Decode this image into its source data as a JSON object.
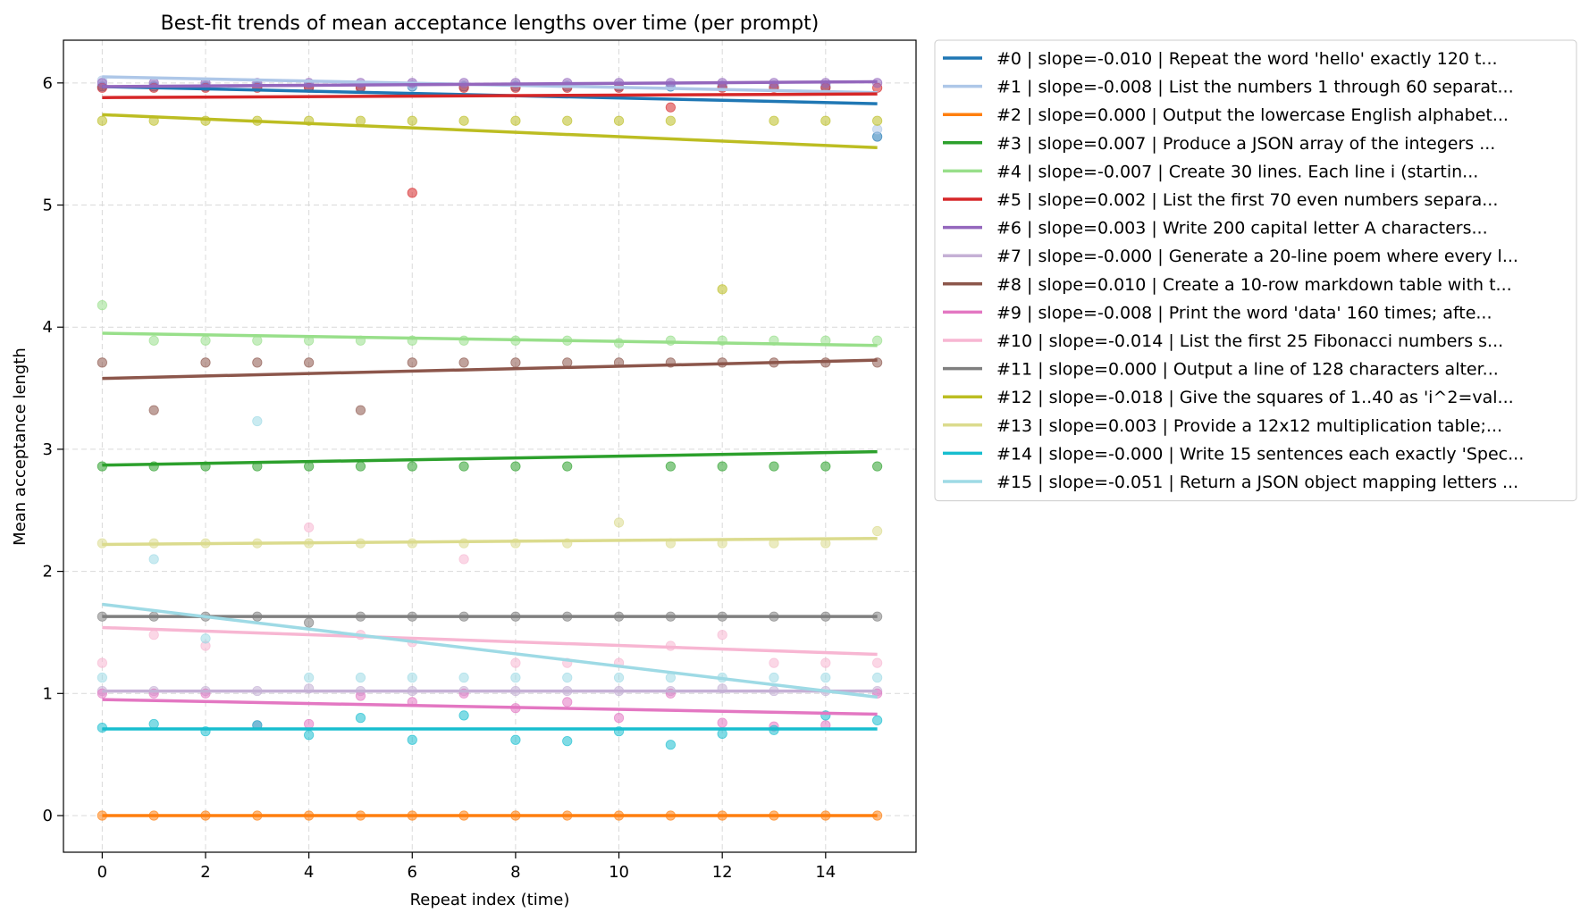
{
  "chart_data": {
    "type": "scatter",
    "title": "Best-fit trends of mean acceptance lengths over time (per prompt)",
    "xlabel": "Repeat index (time)",
    "ylabel": "Mean acceptance length",
    "xlim": [
      -0.75,
      15.75
    ],
    "ylim": [
      -0.3,
      6.35
    ],
    "xticks": [
      0,
      2,
      4,
      6,
      8,
      10,
      12,
      14
    ],
    "yticks": [
      0,
      1,
      2,
      3,
      4,
      5,
      6
    ],
    "grid": true,
    "legend_position": "outside-top-right",
    "x": [
      0,
      1,
      2,
      3,
      4,
      5,
      6,
      7,
      8,
      9,
      10,
      11,
      12,
      13,
      14,
      15
    ],
    "series": [
      {
        "name": "#0 | slope=-0.010 | Repeat the word 'hello' exactly 120 t...",
        "color": "#1f77b4",
        "fit": [
          5.97,
          5.83
        ],
        "values": [
          5.97,
          5.97,
          5.97,
          5.97,
          5.97,
          5.97,
          5.97,
          5.97,
          5.97,
          5.97,
          5.97,
          5.97,
          5.97,
          5.97,
          5.97,
          5.56
        ]
      },
      {
        "name": "#1 | slope=-0.008 | List the numbers 1 through 60 separat...",
        "color": "#aec7e8",
        "fit": [
          6.05,
          5.92
        ],
        "values": [
          6.02,
          5.98,
          5.98,
          5.98,
          5.98,
          5.98,
          5.98,
          5.98,
          5.98,
          5.98,
          5.98,
          5.98,
          5.98,
          5.98,
          5.98,
          5.62
        ]
      },
      {
        "name": "#2 | slope=0.000 | Output the lowercase English alphabet...",
        "color": "#ff7f0e",
        "fit": [
          0.0,
          0.0
        ],
        "values": [
          0,
          0,
          0,
          0,
          0,
          0,
          0,
          0,
          0,
          0,
          0,
          0,
          0,
          0,
          0,
          0
        ]
      },
      {
        "name": "#3 | slope=0.007 | Produce a JSON array of the integers ...",
        "color": "#2ca02c",
        "fit": [
          2.87,
          2.98
        ],
        "values": [
          2.86,
          2.86,
          2.86,
          2.86,
          2.86,
          2.86,
          2.86,
          2.86,
          2.86,
          2.86,
          null,
          2.86,
          2.86,
          2.86,
          2.86,
          2.86
        ]
      },
      {
        "name": "#4 | slope=-0.007 | Create 30 lines. Each line i (startin...",
        "color": "#98df8a",
        "fit": [
          3.95,
          3.85
        ],
        "values": [
          4.18,
          3.89,
          3.89,
          3.89,
          3.89,
          3.89,
          3.89,
          3.89,
          3.89,
          3.89,
          3.87,
          3.89,
          3.89,
          3.89,
          3.89,
          3.89
        ]
      },
      {
        "name": "#5 | slope=0.002 | List the first 70 even numbers separa...",
        "color": "#d62728",
        "fit": [
          5.88,
          5.91
        ],
        "values": [
          5.96,
          5.96,
          5.96,
          5.96,
          5.96,
          5.96,
          5.1,
          5.96,
          5.96,
          5.96,
          5.96,
          5.8,
          5.96,
          5.96,
          5.96,
          5.96
        ]
      },
      {
        "name": "#6 | slope=0.003 | Write 200 capital letter A characters...",
        "color": "#9467bd",
        "fit": [
          5.97,
          6.01
        ],
        "values": [
          6.0,
          6.0,
          6.0,
          6.0,
          6.0,
          6.0,
          6.0,
          6.0,
          6.0,
          6.0,
          6.0,
          6.0,
          6.0,
          6.0,
          6.0,
          6.0
        ]
      },
      {
        "name": "#7 | slope=-0.000 | Generate a 20-line poem where every l...",
        "color": "#c5b0d5",
        "fit": [
          1.02,
          1.02
        ],
        "values": [
          1.02,
          1.02,
          1.02,
          1.02,
          1.04,
          1.02,
          1.02,
          1.02,
          1.02,
          1.02,
          1.02,
          1.02,
          1.04,
          1.02,
          1.02,
          1.02
        ]
      },
      {
        "name": "#8 | slope=0.010 | Create a 10-row markdown table with t...",
        "color": "#8c564b",
        "fit": [
          3.58,
          3.73
        ],
        "values": [
          3.71,
          3.32,
          3.71,
          3.71,
          3.71,
          3.32,
          3.71,
          3.71,
          3.71,
          3.71,
          3.71,
          3.71,
          3.71,
          3.71,
          3.71,
          3.71
        ]
      },
      {
        "name": "#9 | slope=-0.008 | Print the word 'data' 160 times; afte...",
        "color": "#e377c2",
        "fit": [
          0.95,
          0.83
        ],
        "values": [
          1.0,
          1.0,
          1.0,
          0.74,
          0.75,
          0.98,
          0.93,
          1.0,
          0.88,
          0.93,
          0.8,
          1.0,
          0.76,
          0.73,
          0.74,
          1.0
        ]
      },
      {
        "name": "#10 | slope=-0.014 | List the first 25 Fibonacci numbers s...",
        "color": "#f7b6d2",
        "fit": [
          1.54,
          1.32
        ],
        "values": [
          1.25,
          1.48,
          1.39,
          null,
          2.36,
          1.48,
          1.42,
          2.1,
          1.25,
          1.25,
          1.25,
          1.39,
          1.48,
          1.25,
          1.25,
          1.25
        ]
      },
      {
        "name": "#11 | slope=0.000 | Output a line of 128 characters alter...",
        "color": "#7f7f7f",
        "fit": [
          1.63,
          1.63
        ],
        "values": [
          1.63,
          1.63,
          1.63,
          1.63,
          1.58,
          1.63,
          1.63,
          1.63,
          1.63,
          1.63,
          1.63,
          1.63,
          1.63,
          1.63,
          1.63,
          1.63
        ]
      },
      {
        "name": "#12 | slope=-0.018 | Give the squares of 1..40 as 'i^2=val...",
        "color": "#bcbd22",
        "fit": [
          5.74,
          5.47
        ],
        "values": [
          5.69,
          5.69,
          5.69,
          5.69,
          5.69,
          5.69,
          5.69,
          5.69,
          5.69,
          5.69,
          5.69,
          5.69,
          4.31,
          5.69,
          5.69,
          5.69
        ]
      },
      {
        "name": "#13 | slope=0.003 | Provide a 12x12 multiplication table;...",
        "color": "#dbdb8d",
        "fit": [
          2.22,
          2.27
        ],
        "values": [
          2.23,
          2.23,
          2.23,
          2.23,
          2.23,
          2.23,
          2.23,
          2.23,
          2.23,
          2.23,
          2.4,
          2.23,
          2.23,
          2.23,
          2.23,
          2.33
        ]
      },
      {
        "name": "#14 | slope=-0.000 | Write 15 sentences each exactly 'Spec...",
        "color": "#17becf",
        "fit": [
          0.71,
          0.71
        ],
        "values": [
          0.72,
          0.75,
          0.69,
          0.74,
          0.66,
          0.8,
          0.62,
          0.82,
          0.62,
          0.61,
          0.69,
          0.58,
          0.67,
          0.7,
          0.82,
          0.78
        ]
      },
      {
        "name": "#15 | slope=-0.051 | Return a JSON object mapping letters ...",
        "color": "#9edae5",
        "fit": [
          1.73,
          0.97
        ],
        "values": [
          1.13,
          2.1,
          1.45,
          3.23,
          1.13,
          1.13,
          1.13,
          1.13,
          1.13,
          1.13,
          1.13,
          1.13,
          1.13,
          1.13,
          1.13,
          1.13
        ]
      }
    ]
  }
}
